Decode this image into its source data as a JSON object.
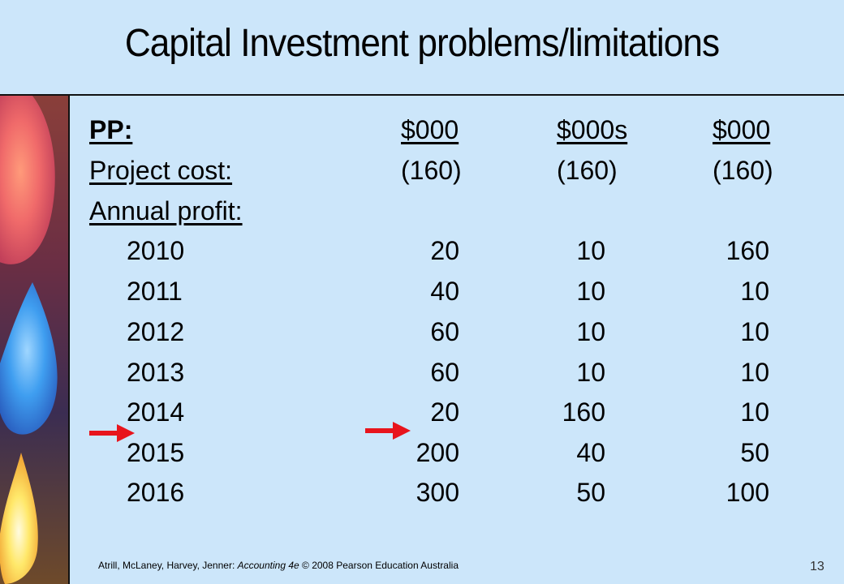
{
  "title": "Capital Investment problems/limitations",
  "header": {
    "label": "PP:",
    "col1": "$000",
    "col2": "$000s",
    "col3": "$000"
  },
  "cost": {
    "label": "Project cost:",
    "col1": "(160)",
    "col2": "(160)",
    "col3": "(160)"
  },
  "profit_label": "Annual profit:",
  "rows": [
    {
      "year": "2010",
      "c1": "20",
      "c2": "10",
      "c3": "160"
    },
    {
      "year": "2011",
      "c1": "40",
      "c2": "10",
      "c3": "10"
    },
    {
      "year": "2012",
      "c1": "60",
      "c2": "10",
      "c3": "10"
    },
    {
      "year": "2013",
      "c1": "60",
      "c2": "10",
      "c3": "10"
    },
    {
      "year": "2014",
      "c1": "20",
      "c2": "160",
      "c3": "10"
    },
    {
      "year": "2015",
      "c1": "200",
      "c2": "40",
      "c3": "50"
    },
    {
      "year": "2016",
      "c1": "300",
      "c2": "50",
      "c3": "100"
    }
  ],
  "footer": {
    "authors": "Atrill, McLaney, Harvey, Jenner: ",
    "book": "Accounting 4e",
    "publisher": " © 2008 Pearson Education Australia"
  },
  "page_number": "13",
  "colors": {
    "background": "#cce6fa",
    "arrow": "#e8141c"
  },
  "icons": [
    "arrow-right-icon",
    "arrow-right-icon"
  ]
}
